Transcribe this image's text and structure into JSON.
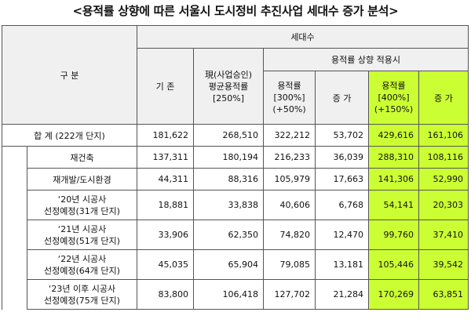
{
  "title": "<용적률 상향에 따른 서울시 도시정비 추진사업 세대수 증가 분석>",
  "headers": {
    "category": "구 분",
    "units": "세대수",
    "existing": "기 존",
    "current": [
      "現(사업승인)",
      "평균용적률",
      "[250%]"
    ],
    "upgrade_group": "용적률 상향 적용시",
    "far300": [
      "용적률",
      "[300%]",
      "(+50%)"
    ],
    "increase1": "증 가",
    "far400": [
      "용적률",
      "[400%]",
      "(+150%)"
    ],
    "increase2": "증 가"
  },
  "rows": [
    {
      "label": [
        "합 계 (222개 단지)"
      ],
      "existing": "181,622",
      "current": "268,510",
      "far300": "322,212",
      "inc300": "53,702",
      "far400": "429,616",
      "inc400": "161,106"
    },
    {
      "label": [
        "재건축"
      ],
      "existing": "137,311",
      "current": "180,194",
      "far300": "216,233",
      "inc300": "36,039",
      "far400": "288,310",
      "inc400": "108,116"
    },
    {
      "label": [
        "재개발/도시환경"
      ],
      "existing": "44,311",
      "current": "88,316",
      "far300": "105,979",
      "inc300": "17,663",
      "far400": "141,306",
      "inc400": "52,990"
    },
    {
      "label": [
        "‘20년 시공사",
        "선정예정(31개 단지)"
      ],
      "existing": "18,881",
      "current": "33,838",
      "far300": "40,606",
      "inc300": "6,768",
      "far400": "54,141",
      "inc400": "20,303"
    },
    {
      "label": [
        "‘21년 시공사",
        "선정예정(51개 단지)"
      ],
      "existing": "33,906",
      "current": "62,350",
      "far300": "74,820",
      "inc300": "12,470",
      "far400": "99,760",
      "inc400": "37,410"
    },
    {
      "label": [
        "‘22년 시공사",
        "선정예정(64개 단지)"
      ],
      "existing": "45,035",
      "current": "65,904",
      "far300": "79,085",
      "inc300": "13,181",
      "far400": "105,446",
      "inc400": "39,542"
    },
    {
      "label": [
        "‘23년 이후 시공사",
        "선정예정(75개 단지)"
      ],
      "existing": "83,800",
      "current": "106,418",
      "far300": "127,702",
      "inc300": "21,284",
      "far400": "170,269",
      "inc400": "63,851"
    }
  ]
}
